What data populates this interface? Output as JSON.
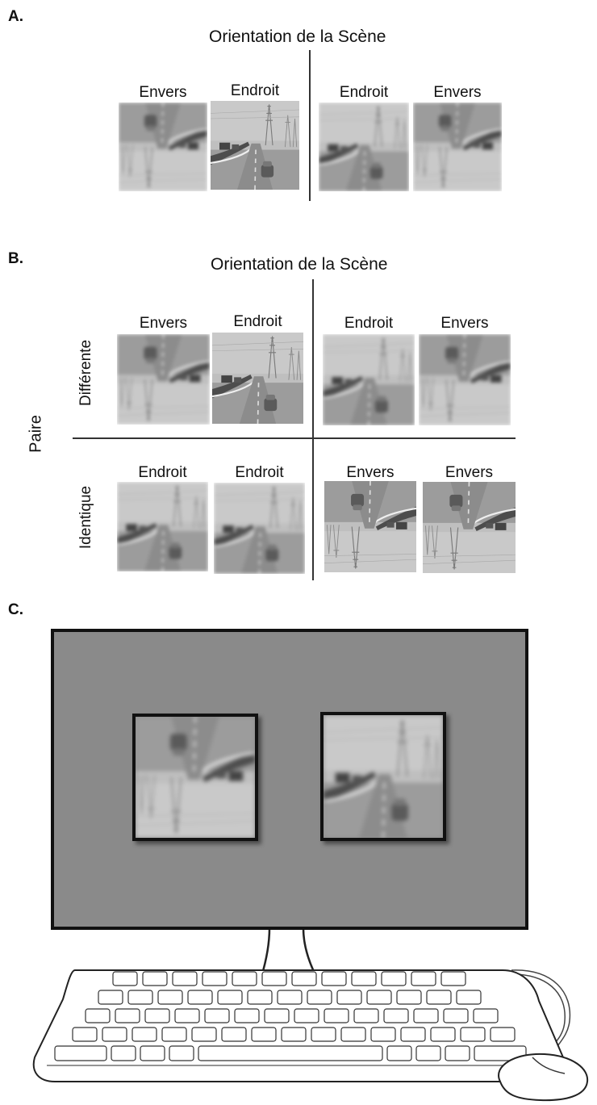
{
  "panel_a": {
    "letter": "A.",
    "title": "Orientation  de la Scène",
    "labels": [
      "Envers",
      "Endroit",
      "Endroit",
      "Envers"
    ]
  },
  "panel_b": {
    "letter": "B.",
    "title": "Orientation  de la Scène",
    "row_axis_label": "Paire",
    "row_labels": [
      "Différente",
      "Identique"
    ],
    "top_labels": [
      "Envers",
      "Endroit",
      "Endroit",
      "Envers"
    ],
    "bottom_labels": [
      "Endroit",
      "Endroit",
      "Envers",
      "Envers"
    ]
  },
  "panel_c": {
    "letter": "C."
  },
  "icons": {
    "scene": "highway-scene-image",
    "keyboard": "keyboard-icon",
    "mouse": "mouse-icon",
    "monitor": "monitor-icon"
  },
  "colors": {
    "screen": "#8a8a8a",
    "frame": "#111111"
  }
}
